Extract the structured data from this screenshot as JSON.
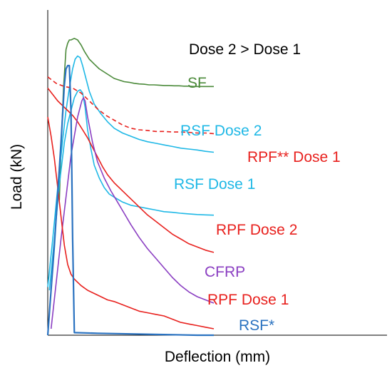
{
  "chart_data": {
    "type": "line",
    "xlabel": "Deflection (mm)",
    "ylabel": "Load (kN)",
    "annotation": "Dose 2 > Dose 1",
    "xlim": [
      0,
      100
    ],
    "ylim": [
      0,
      100
    ],
    "grid": false,
    "legend": "inline labels at curve ends",
    "series": [
      {
        "name": "SF",
        "color": "#4b8a3a",
        "style": "solid",
        "x": [
          7,
          8,
          9.5,
          11,
          12,
          13,
          14,
          16,
          18,
          20,
          22,
          25,
          28,
          31,
          34,
          37,
          40,
          43,
          46,
          49,
          52,
          55,
          58,
          61,
          64,
          67,
          70,
          73,
          76,
          79,
          82,
          85,
          88,
          91,
          94,
          97,
          100
        ],
        "y": [
          42,
          58,
          77,
          89,
          91,
          92,
          92,
          92.5,
          92,
          90.5,
          88.5,
          86,
          84.5,
          83,
          82,
          81,
          80,
          79.5,
          79,
          78.8,
          78.5,
          78.3,
          78.2,
          78,
          78,
          77.9,
          77.8,
          77.8,
          77.7,
          77.7,
          77.6,
          77.6,
          77.5,
          77.5,
          77.5,
          77.5,
          77.5
        ]
      },
      {
        "name": "RSF Dose 2",
        "color": "#1fb8e6",
        "style": "solid",
        "x": [
          0,
          3,
          6,
          9,
          11,
          13,
          15,
          16.5,
          18,
          19.5,
          21,
          23,
          25,
          28,
          32,
          36,
          40,
          45,
          50,
          55,
          60,
          65,
          70,
          75,
          80,
          85,
          90,
          95,
          100
        ],
        "y": [
          15,
          30,
          46,
          61,
          70,
          77,
          83,
          86,
          87,
          86.5,
          84,
          80,
          76,
          72,
          69,
          66.5,
          64.5,
          63,
          62,
          61,
          60.3,
          59.8,
          59.3,
          58.8,
          58.3,
          58,
          57.7,
          57.3,
          57
        ]
      },
      {
        "name": "RSF Dose 1",
        "color": "#1fb8e6",
        "style": "solid",
        "x": [
          1,
          4,
          7,
          10,
          12,
          14,
          16,
          18,
          19.5,
          21,
          22.5,
          24,
          26,
          28,
          31,
          34,
          37,
          40,
          45,
          50,
          55,
          60,
          65,
          70,
          75,
          80,
          85,
          90,
          95,
          100
        ],
        "y": [
          14,
          30,
          47,
          60,
          66,
          70,
          74,
          76,
          76.5,
          75.5,
          71,
          64,
          58,
          53,
          49,
          46,
          44,
          43,
          41.5,
          40.5,
          40,
          39.5,
          39,
          38.5,
          38.3,
          38,
          37.8,
          37.6,
          37.5,
          37.4
        ]
      },
      {
        "name": "RPF** Dose 1",
        "color": "#e8211e",
        "style": "dashed",
        "x": [
          0,
          5,
          10,
          15,
          20,
          25,
          30,
          35,
          40,
          45,
          50,
          55,
          60,
          65,
          70,
          75,
          80,
          85,
          90,
          95,
          100
        ],
        "y": [
          80.5,
          78.5,
          77.5,
          77,
          75.5,
          73,
          70.5,
          68.5,
          67,
          65.5,
          64.5,
          64,
          63.8,
          63.5,
          63.5,
          63.3,
          63.3,
          63.2,
          63,
          63,
          62.8
        ]
      },
      {
        "name": "RPF Dose 2",
        "color": "#e8211e",
        "style": "solid",
        "x": [
          0,
          3,
          6,
          9,
          12,
          15,
          18,
          21,
          24,
          27,
          30,
          33,
          36,
          40,
          44,
          48,
          52,
          56,
          60,
          65,
          70,
          75,
          80,
          85,
          90,
          95,
          100
        ],
        "y": [
          77,
          75,
          73,
          71.5,
          70,
          68.5,
          66.5,
          64,
          61.5,
          58.5,
          55.5,
          52.5,
          50,
          47.5,
          45.5,
          43.5,
          41.5,
          39.5,
          37.5,
          35.5,
          33.5,
          31.5,
          30,
          28.5,
          27.5,
          26.5,
          25.8
        ]
      },
      {
        "name": "CFRP",
        "color": "#8b3fc2",
        "style": "solid",
        "x": [
          2,
          8,
          14,
          18,
          20.5,
          21.5,
          22.5,
          24,
          27,
          30,
          34,
          38,
          42,
          46,
          50,
          55,
          60,
          65,
          70,
          75,
          80,
          85,
          90,
          95,
          100
        ],
        "y": [
          2,
          30,
          56,
          68,
          73,
          74,
          73,
          68,
          60,
          54,
          49,
          45,
          41.5,
          38,
          34.5,
          30.5,
          27,
          24,
          21,
          18,
          15.5,
          13.5,
          12,
          11,
          10
        ]
      },
      {
        "name": "RPF Dose 1",
        "color": "#e8211e",
        "style": "solid",
        "x": [
          0,
          2,
          4,
          6,
          8,
          10,
          12,
          14,
          16,
          18,
          20,
          24,
          28,
          32,
          36,
          40,
          45,
          50,
          55,
          60,
          65,
          70,
          75,
          80,
          85,
          90,
          95,
          100
        ],
        "y": [
          68,
          62,
          55,
          46,
          37,
          28,
          22,
          19,
          17.5,
          16.5,
          15.5,
          14,
          13,
          12,
          11,
          10.5,
          9.5,
          8.5,
          7.5,
          7,
          6.5,
          6,
          5,
          4,
          3.5,
          3,
          2.5,
          2
        ]
      },
      {
        "name": "RSF*",
        "color": "#2a72c0",
        "style": "solid",
        "x": [
          0,
          4,
          8,
          10,
          11,
          12,
          13,
          14,
          14.5,
          15,
          16,
          30,
          50,
          70,
          90,
          100
        ],
        "y": [
          0,
          28,
          60,
          78,
          83,
          84,
          84,
          70,
          50,
          30,
          0.8,
          0.6,
          0.4,
          0.2,
          0,
          0
        ]
      }
    ]
  }
}
